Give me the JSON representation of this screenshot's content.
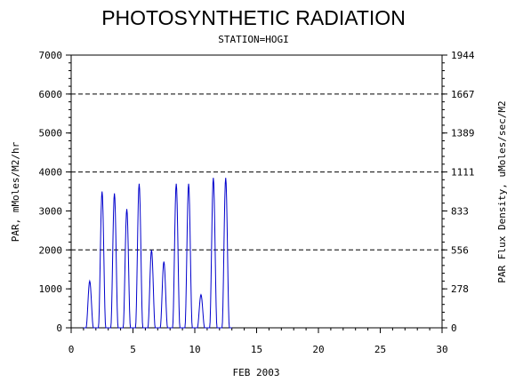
{
  "chart_data": {
    "type": "line",
    "title": "PHOTOSYNTHETIC RADIATION",
    "subtitle": "STATION=HOGI",
    "xlabel": "FEB 2003",
    "ylabel_left": "PAR, mMoles/M2/hr",
    "ylabel_right": "PAR Flux Density, uMoles/sec/M2",
    "xlim": [
      0,
      30
    ],
    "ylim": [
      0,
      7000
    ],
    "x_ticks": [
      "0",
      "5",
      "10",
      "15",
      "20",
      "25",
      "30"
    ],
    "y_ticks_left": [
      "0",
      "1000",
      "2000",
      "3000",
      "4000",
      "5000",
      "6000",
      "7000"
    ],
    "y_ticks_right": [
      "0",
      "278",
      "556",
      "833",
      "1111",
      "1389",
      "1667",
      "1944"
    ],
    "grid": {
      "dashed_y": [
        2000,
        4000,
        6000
      ]
    },
    "series": [
      {
        "color": "#0000cc",
        "daily_peaks": [
          {
            "day": 1,
            "peak": 1200
          },
          {
            "day": 2,
            "peak": 3500
          },
          {
            "day": 3,
            "peak": 3450
          },
          {
            "day": 4,
            "peak": 3050
          },
          {
            "day": 5,
            "peak": 3700
          },
          {
            "day": 6,
            "peak": 2000
          },
          {
            "day": 7,
            "peak": 1700
          },
          {
            "day": 8,
            "peak": 3700
          },
          {
            "day": 9,
            "peak": 3700
          },
          {
            "day": 10,
            "peak": 850
          },
          {
            "day": 11,
            "peak": 3850
          },
          {
            "day": 12,
            "peak": 3850
          }
        ],
        "x_start": 1.0,
        "x_end": 13.0
      }
    ]
  }
}
